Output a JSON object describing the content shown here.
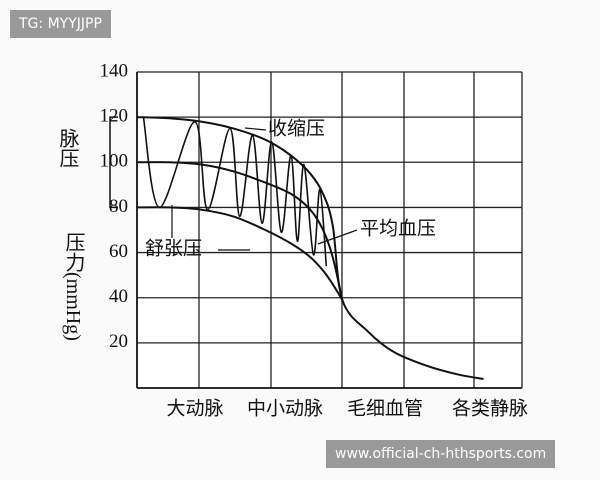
{
  "chart_data": {
    "type": "line",
    "categories": [
      "大动脉",
      "中小动脉",
      "毛细血管",
      "各类静脉"
    ],
    "y_label": "压力(mmHg)",
    "bracket_label": "脉压",
    "ylim": [
      0,
      140
    ],
    "yticks": [
      20,
      40,
      60,
      80,
      100,
      120,
      140
    ],
    "xlim": [
      0,
      6
    ],
    "grid": true,
    "series": [
      {
        "name": "收缩压",
        "color": "#111111",
        "x": [
          0,
          0.5,
          1,
          1.5,
          2,
          2.4,
          2.7,
          2.9,
          3.05,
          3.2,
          3.6,
          4,
          4.5,
          5,
          5.4
        ],
        "values": [
          120,
          119.5,
          118,
          115,
          110,
          103,
          95,
          86,
          72,
          39,
          25,
          16,
          10,
          6,
          4
        ]
      },
      {
        "name": "平均血压",
        "color": "#111111",
        "x": [
          0,
          0.5,
          1,
          1.5,
          2,
          2.4,
          2.7,
          2.9,
          3.05,
          3.2
        ],
        "values": [
          100,
          100,
          99,
          96,
          91,
          86,
          79,
          70,
          58,
          39
        ]
      },
      {
        "name": "舒张压",
        "color": "#111111",
        "x": [
          0,
          0.5,
          1,
          1.5,
          2,
          2.4,
          2.7,
          2.9,
          3.05,
          3.2
        ],
        "values": [
          80,
          80,
          79,
          76,
          70,
          64,
          58,
          52,
          46,
          39
        ]
      },
      {
        "color": "#111111",
        "x": [
          0.1,
          0.35,
          0.9,
          1.1,
          1.45,
          1.6,
          1.8,
          1.95,
          2.1,
          2.25,
          2.4,
          2.5,
          2.6,
          2.75,
          2.85,
          2.95
        ],
        "values": [
          120,
          80,
          118,
          79,
          115,
          76,
          112,
          73,
          109,
          69,
          103,
          65,
          99,
          59,
          88,
          54
        ]
      }
    ]
  },
  "watermarks": [
    "TG: MYYJJPP",
    "www.official-ch-hthsports.com"
  ]
}
